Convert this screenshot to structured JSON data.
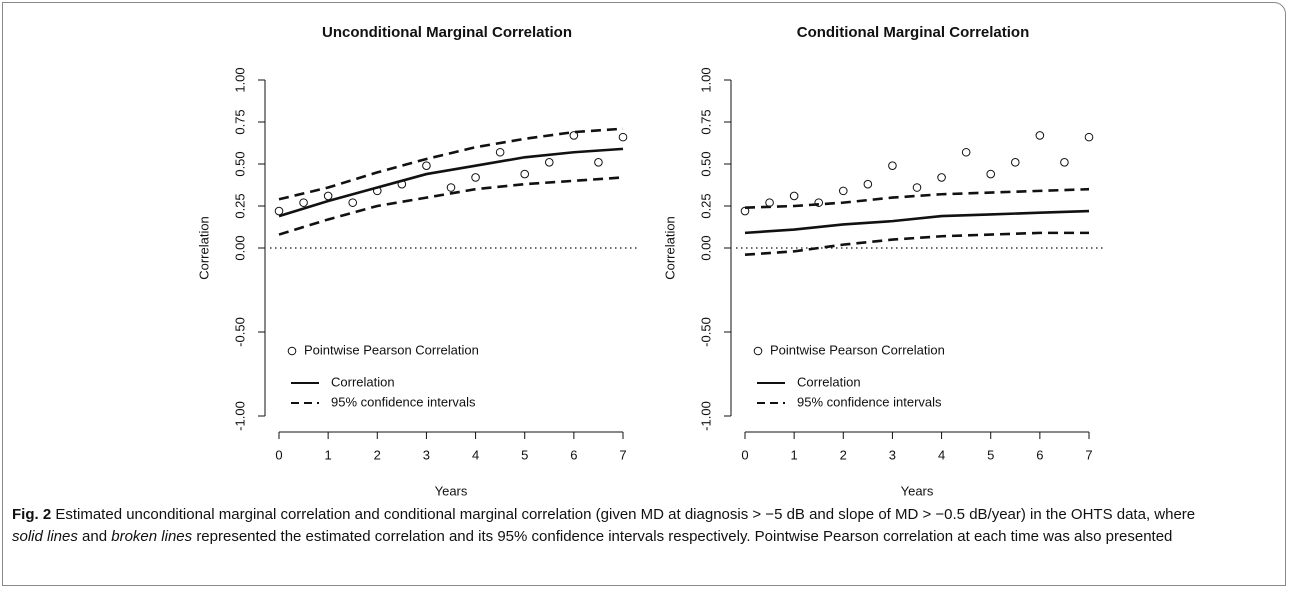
{
  "chart_data": [
    {
      "type": "line",
      "title": "Unconditional Marginal Correlation",
      "x_label": "Years",
      "y_label": "Correlation",
      "xlim": [
        0,
        7
      ],
      "xticks": [
        0,
        1,
        2,
        3,
        4,
        5,
        6,
        7
      ],
      "ylim": [
        -1,
        1
      ],
      "yticks": [
        {
          "value": 1,
          "label": "1.00"
        },
        {
          "value": 0.75,
          "label": "0.75"
        },
        {
          "value": 0.5,
          "label": "0.50"
        },
        {
          "value": 0.25,
          "label": "0.25"
        },
        {
          "value": 0,
          "label": "0.00"
        },
        {
          "value": -0.5,
          "label": "-0.50"
        },
        {
          "value": -1,
          "label": "-1.00"
        }
      ],
      "reference_line": 0,
      "series": [
        {
          "name": "Pointwise Pearson Correlation",
          "style": "points",
          "color": "#111111",
          "x": [
            0,
            0.5,
            1,
            1.5,
            2,
            2.5,
            3,
            3.5,
            4,
            4.5,
            5,
            5.5,
            6,
            6.5,
            7
          ],
          "values": [
            0.22,
            0.27,
            0.31,
            0.27,
            0.34,
            0.38,
            0.49,
            0.36,
            0.42,
            0.57,
            0.44,
            0.51,
            0.67,
            0.51,
            0.66
          ]
        },
        {
          "name": "Correlation",
          "style": "solid",
          "color": "#111111",
          "x": [
            0,
            1,
            2,
            3,
            4,
            5,
            6,
            7
          ],
          "values": [
            0.19,
            0.28,
            0.36,
            0.44,
            0.49,
            0.54,
            0.57,
            0.59
          ]
        },
        {
          "name": "95% confidence intervals",
          "style": "dashed",
          "color": "#111111",
          "x": [
            0,
            1,
            2,
            3,
            4,
            5,
            6,
            7
          ],
          "upper": [
            0.29,
            0.36,
            0.45,
            0.53,
            0.6,
            0.65,
            0.69,
            0.71
          ],
          "lower": [
            0.08,
            0.17,
            0.25,
            0.3,
            0.35,
            0.38,
            0.4,
            0.42
          ]
        }
      ]
    },
    {
      "type": "line",
      "title": "Conditional Marginal Correlation",
      "x_label": "Years",
      "y_label": "Correlation",
      "xlim": [
        0,
        7
      ],
      "xticks": [
        0,
        1,
        2,
        3,
        4,
        5,
        6,
        7
      ],
      "ylim": [
        -1,
        1
      ],
      "yticks": [
        {
          "value": 1,
          "label": "1.00"
        },
        {
          "value": 0.75,
          "label": "0.75"
        },
        {
          "value": 0.5,
          "label": "0.50"
        },
        {
          "value": 0.25,
          "label": "0.25"
        },
        {
          "value": 0,
          "label": "0.00"
        },
        {
          "value": -0.5,
          "label": "-0.50"
        },
        {
          "value": -1,
          "label": "-1.00"
        }
      ],
      "reference_line": 0,
      "series": [
        {
          "name": "Pointwise Pearson Correlation",
          "style": "points",
          "color": "#111111",
          "x": [
            0,
            0.5,
            1,
            1.5,
            2,
            2.5,
            3,
            3.5,
            4,
            4.5,
            5,
            5.5,
            6,
            6.5,
            7
          ],
          "values": [
            0.22,
            0.27,
            0.31,
            0.27,
            0.34,
            0.38,
            0.49,
            0.36,
            0.42,
            0.57,
            0.44,
            0.51,
            0.67,
            0.51,
            0.66
          ]
        },
        {
          "name": "Correlation",
          "style": "solid",
          "color": "#111111",
          "x": [
            0,
            1,
            2,
            3,
            4,
            5,
            6,
            7
          ],
          "values": [
            0.09,
            0.11,
            0.14,
            0.16,
            0.19,
            0.2,
            0.21,
            0.22
          ]
        },
        {
          "name": "95% confidence intervals",
          "style": "dashed",
          "color": "#111111",
          "x": [
            0,
            1,
            2,
            3,
            4,
            5,
            6,
            7
          ],
          "upper": [
            0.24,
            0.25,
            0.27,
            0.3,
            0.32,
            0.33,
            0.34,
            0.35
          ],
          "lower": [
            -0.04,
            -0.02,
            0.02,
            0.05,
            0.07,
            0.08,
            0.09,
            0.09
          ]
        }
      ]
    }
  ],
  "caption": {
    "label": "Fig. 2",
    "text_1": "Estimated unconditional marginal correlation and conditional marginal correlation (given MD at diagnosis > −5 dB and slope of MD > −0.5 dB/year) in the OHTS data, where",
    "emphasis_1": "solid lines",
    "text_2": "and",
    "emphasis_2": "broken lines",
    "text_3": "represented the estimated correlation and its 95% confidence intervals respectively. Pointwise Pearson correlation at each time was also presented"
  }
}
